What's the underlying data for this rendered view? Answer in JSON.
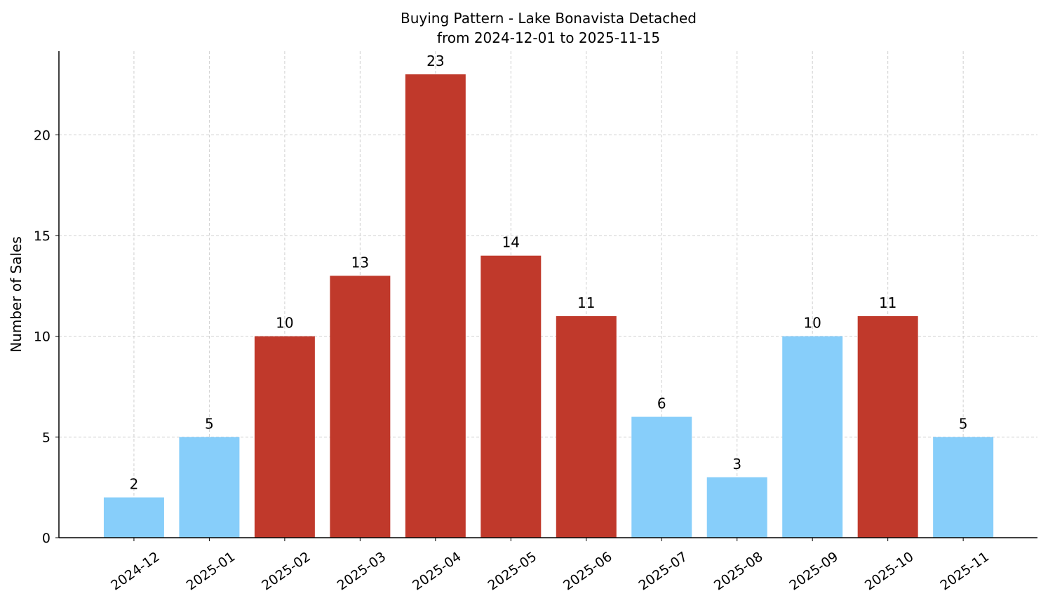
{
  "chart_data": {
    "type": "bar",
    "title": "Buying Pattern - Lake Bonavista Detached",
    "subtitle": "from 2024-12-01 to 2025-11-15",
    "y_label": "Number of Sales",
    "categories": [
      "2024-12",
      "2025-01",
      "2025-02",
      "2025-03",
      "2025-04",
      "2025-05",
      "2025-06",
      "2025-07",
      "2025-08",
      "2025-09",
      "2025-10",
      "2025-11"
    ],
    "values": [
      2,
      5,
      10,
      13,
      23,
      14,
      11,
      6,
      3,
      10,
      11,
      5
    ],
    "colors": [
      "#87cefa",
      "#87cefa",
      "#c0392b",
      "#c0392b",
      "#c0392b",
      "#c0392b",
      "#c0392b",
      "#87cefa",
      "#87cefa",
      "#87cefa",
      "#c0392b",
      "#87cefa"
    ],
    "ylim": [
      0,
      24.15
    ],
    "yticks": [
      0,
      5,
      10,
      15,
      20
    ],
    "grid": true
  }
}
